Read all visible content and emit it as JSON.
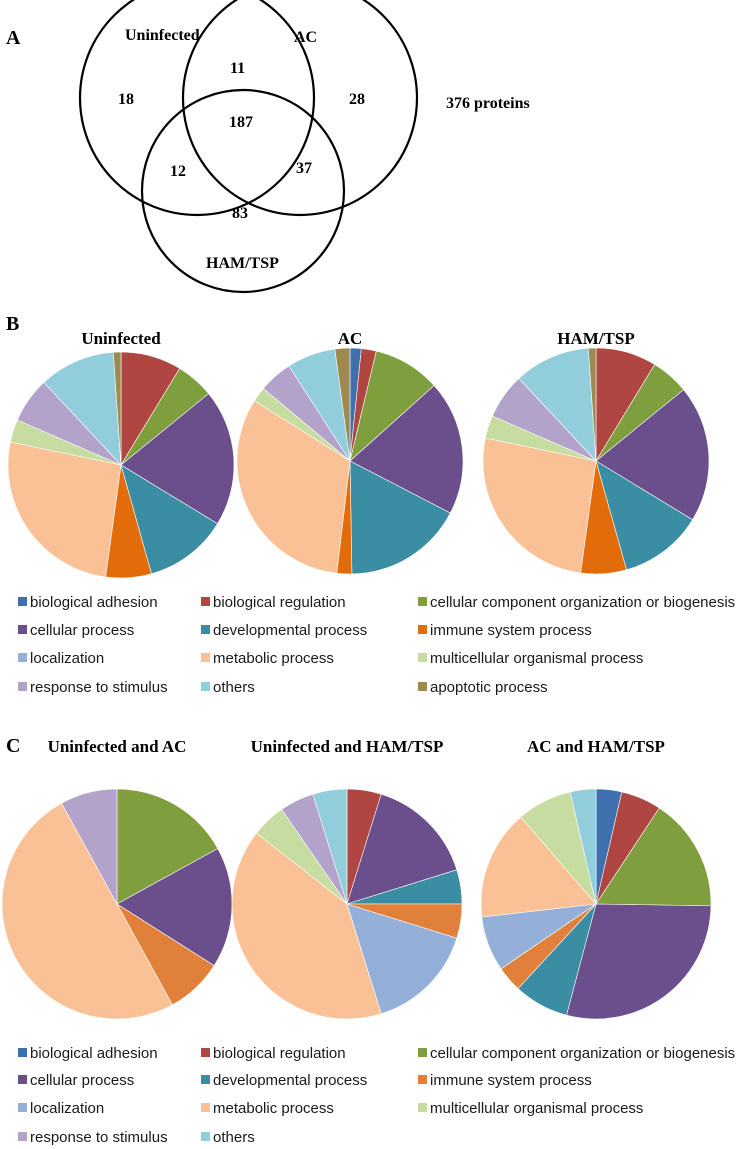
{
  "chart_data": [
    {
      "type": "venn",
      "panel": "A",
      "sets": [
        "Uninfected",
        "AC",
        "HAM/TSP"
      ],
      "regions": {
        "uninfected_only": 18,
        "ac_only": 28,
        "ham_only": 83,
        "uninfected_ac": 11,
        "uninfected_ham": 12,
        "ac_ham": 37,
        "all_three": 187
      },
      "total_label": "376 proteins"
    },
    {
      "type": "pie",
      "panel": "B",
      "categories": [
        "biological adhesion",
        "biological regulation",
        "cellular component organization or biogenesis",
        "cellular process",
        "developmental process",
        "immune system process",
        "localization",
        "metabolic process",
        "multicellular organismal process",
        "response to stimulus",
        "others",
        "apoptotic process"
      ],
      "colors": [
        "#3f6fad",
        "#b04642",
        "#7f9e3e",
        "#6a4f8c",
        "#3a8da3",
        "#e36c0a",
        "#95b0d8",
        "#f9c195",
        "#c6dca0",
        "#b3a2c9",
        "#92cddc",
        "#9c8a4e"
      ],
      "series": [
        {
          "name": "Uninfected",
          "values": [
            0,
            8,
            5,
            18,
            11,
            6,
            0,
            24,
            3,
            6,
            10,
            1
          ]
        },
        {
          "name": "AC",
          "values": [
            1.5,
            2,
            9,
            18,
            16,
            2,
            0,
            30,
            2,
            4.5,
            6.5,
            2
          ]
        },
        {
          "name": "HAM/TSP",
          "values": [
            0,
            8,
            5,
            18,
            11,
            6,
            0,
            24,
            3,
            6,
            10,
            1
          ]
        }
      ]
    },
    {
      "type": "pie",
      "panel": "C",
      "categories": [
        "biological adhesion",
        "biological regulation",
        "cellular component organization or biogenesis",
        "cellular process",
        "developmental process",
        "immune system process",
        "localization",
        "metabolic process",
        "multicellular organismal process",
        "response to stimulus",
        "others"
      ],
      "colors": [
        "#3f6fad",
        "#b04642",
        "#7f9e3e",
        "#6a4f8c",
        "#3a8da3",
        "#e0803a",
        "#95b0d8",
        "#f9c195",
        "#c6dca0",
        "#b3a2c9",
        "#92cddc"
      ],
      "series": [
        {
          "name": "Uninfected  and AC",
          "values": [
            0,
            0,
            17,
            17,
            0,
            8,
            0,
            50,
            0,
            8,
            0
          ]
        },
        {
          "name": "Uninfected  and HAM/TSP",
          "values": [
            0,
            5,
            0,
            16,
            5,
            5,
            16,
            42,
            5,
            5,
            5
          ]
        },
        {
          "name": "AC and HAM/TSP",
          "values": [
            3.5,
            5.5,
            15.5,
            28,
            7.5,
            3.5,
            7.5,
            15,
            7.5,
            0,
            3.5
          ]
        }
      ]
    }
  ],
  "panel_b_legend": [
    [
      "biological adhesion",
      "biological regulation",
      "cellular component organization or biogenesis"
    ],
    [
      "cellular process",
      "developmental process",
      "immune system process"
    ],
    [
      "localization",
      "metabolic process",
      "multicellular organismal process"
    ],
    [
      "response to stimulus",
      "others",
      "apoptotic process"
    ]
  ],
  "panel_c_legend": [
    [
      "biological adhesion",
      "biological regulation",
      "cellular component organization or biogenesis"
    ],
    [
      "cellular process",
      "developmental process",
      "immune system process"
    ],
    [
      "localization",
      "metabolic process",
      "multicellular organismal process"
    ],
    [
      "response to stimulus",
      "others"
    ]
  ]
}
